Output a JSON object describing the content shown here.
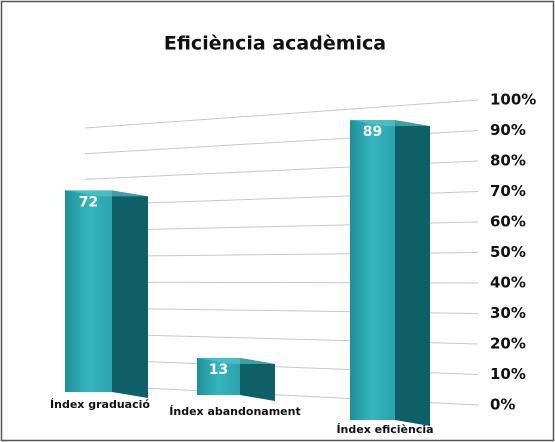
{
  "chart_data": {
    "type": "bar3d",
    "title": "Eficiència acadèmica",
    "categories": [
      "Índex graduació",
      "Índex abandonament",
      "Índex eficiència"
    ],
    "values": [
      72,
      13,
      89
    ],
    "color": "#2aa3ad",
    "ylim": [
      0,
      100
    ],
    "yticks": [
      {
        "value": 0,
        "label": "0%"
      },
      {
        "value": 10,
        "label": "10%"
      },
      {
        "value": 20,
        "label": "20%"
      },
      {
        "value": 30,
        "label": "30%"
      },
      {
        "value": 40,
        "label": "40%"
      },
      {
        "value": 50,
        "label": "50%"
      },
      {
        "value": 60,
        "label": "60%"
      },
      {
        "value": 70,
        "label": "70%"
      },
      {
        "value": 80,
        "label": "80%"
      },
      {
        "value": 90,
        "label": "90%"
      },
      {
        "value": 100,
        "label": "100%"
      }
    ],
    "grid": true
  }
}
